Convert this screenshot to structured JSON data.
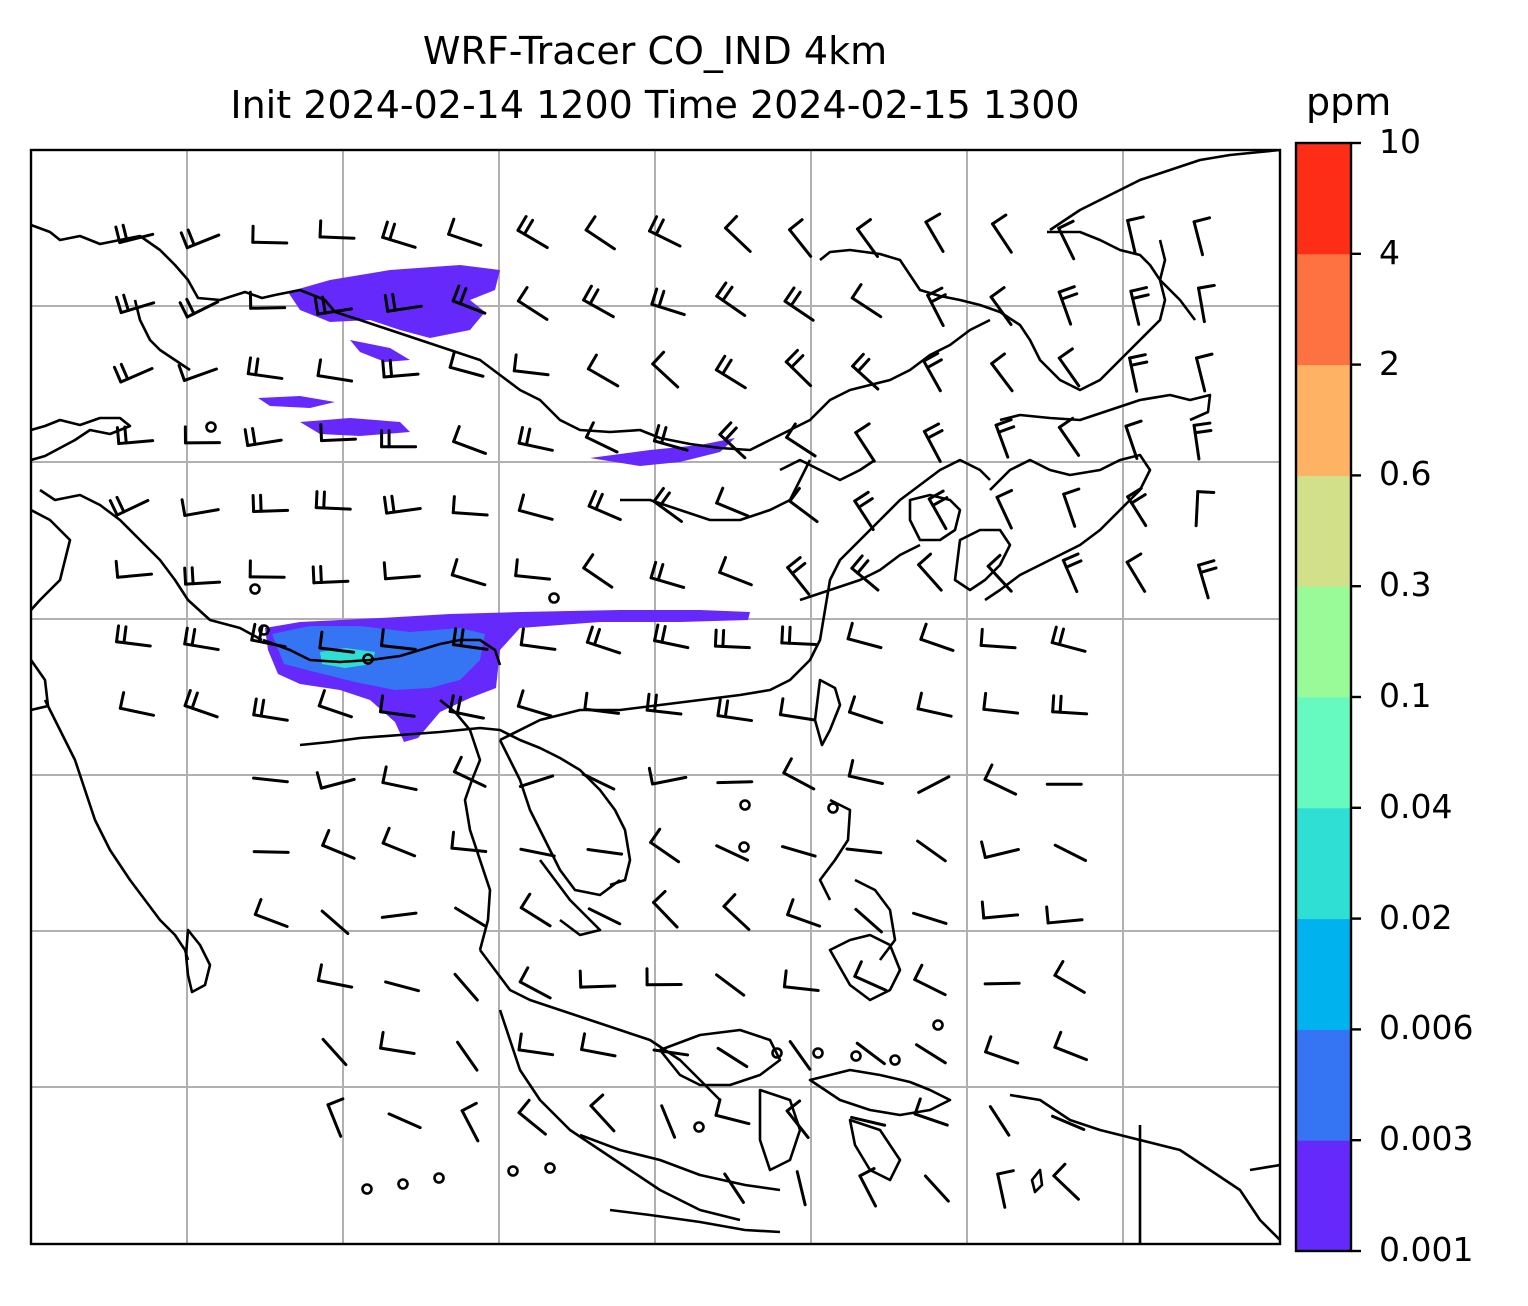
{
  "title_line1": "WRF-Tracer CO_IND 4km",
  "title_line2": "Init 2024-02-14 1200 Time 2024-02-15 1300",
  "colorbar": {
    "unit": "ppm",
    "levels": [
      "0.001",
      "0.003",
      "0.006",
      "0.02",
      "0.04",
      "0.1",
      "0.3",
      "0.6",
      "2",
      "4",
      "10"
    ],
    "colors": [
      "#6629fb",
      "#3574f2",
      "#00b3ee",
      "#2fdfd4",
      "#66fac0",
      "#98fb98",
      "#d2e08a",
      "#feb264",
      "#fe7140",
      "#fe2d18"
    ]
  },
  "map": {
    "frame_color": "#000000",
    "grid_color": "#b0b0b0",
    "coastline_color": "#000000",
    "barb_color": "#000000",
    "tracer_low_color": "#6629fb",
    "tracer_mid_color": "#3574f2",
    "tracer_high_color": "#2fdfd4"
  }
}
